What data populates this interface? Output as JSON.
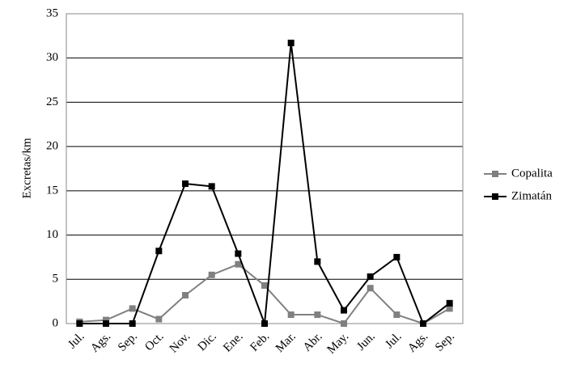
{
  "chart_data": {
    "type": "line",
    "y_label": "Excretas/km",
    "categories": [
      "Jul.",
      "Ags.",
      "Sep.",
      "Oct.",
      "Nov.",
      "Dic.",
      "Ene.",
      "Feb.",
      "Mar.",
      "Abr.",
      "May.",
      "Jun.",
      "Jul.",
      "Ags.",
      "Sep."
    ],
    "series": [
      {
        "name": "Copalita",
        "color": "#808080",
        "values": [
          0.2,
          0.4,
          1.7,
          0.5,
          3.2,
          5.5,
          6.7,
          4.3,
          1.0,
          1.0,
          0,
          4.0,
          1.0,
          0,
          1.7
        ]
      },
      {
        "name": "Zimatán",
        "color": "#000000",
        "values": [
          0,
          0,
          0,
          8.2,
          15.8,
          15.5,
          7.9,
          0,
          31.7,
          7.0,
          1.5,
          5.3,
          7.5,
          0,
          2.3
        ]
      }
    ],
    "ylim": [
      0,
      35
    ],
    "yticks": [
      0,
      5,
      10,
      15,
      20,
      25,
      30,
      35
    ],
    "grid": true,
    "legend": "right"
  }
}
